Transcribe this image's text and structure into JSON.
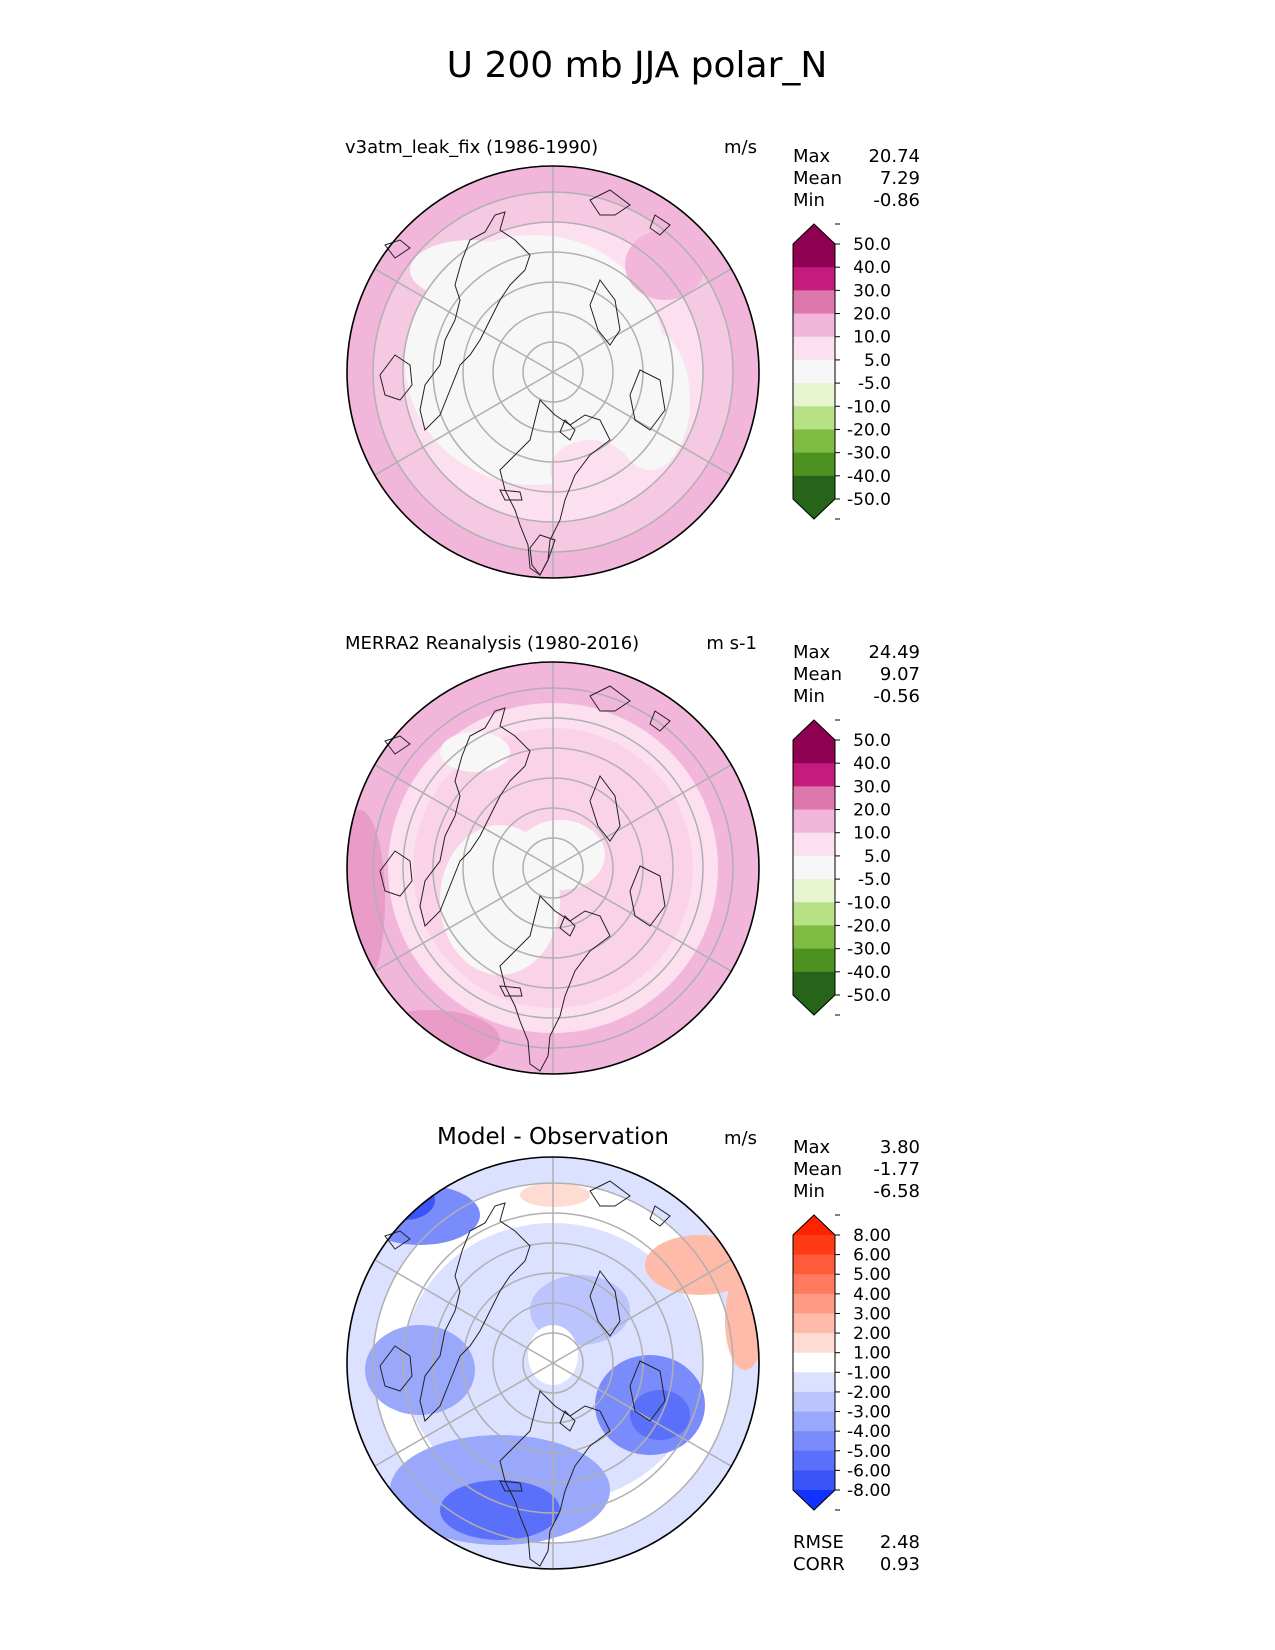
{
  "title": "U 200 mb JJA polar_N",
  "chart_data": [
    {
      "type": "heatmap",
      "projection": "north-polar-stereographic",
      "panel_title": "v3atm_leak_fix (1986-1990)",
      "units": "m/s",
      "stats": {
        "max_label": "Max",
        "max": "20.74",
        "mean_label": "Mean",
        "mean": "7.29",
        "min_label": "Min",
        "min": "-0.86"
      },
      "colorbar": {
        "levels": [
          "50.0",
          "40.0",
          "30.0",
          "20.0",
          "10.0",
          "5.0",
          "-5.0",
          "-10.0",
          "-20.0",
          "-30.0",
          "-40.0",
          "-50.0"
        ],
        "colors": [
          "#8e0152",
          "#c51b7d",
          "#de77ae",
          "#f1b6da",
          "#fde0ef",
          "#f7f7f7",
          "#e6f5d0",
          "#b8e186",
          "#7fbc41",
          "#4d9221",
          "#276419"
        ],
        "top_color": "#8e0152",
        "bottom_color": "#276419"
      },
      "field": {
        "mean_value": 7.29,
        "fill_rings": [
          {
            "lat_min": 40,
            "lat_max": 50,
            "value": 15
          },
          {
            "lat_min": 50,
            "lat_max": 60,
            "value": 12
          },
          {
            "lat_min": 60,
            "lat_max": 70,
            "value": 6
          },
          {
            "lat_min": 70,
            "lat_max": 90,
            "value": 2
          }
        ]
      }
    },
    {
      "type": "heatmap",
      "projection": "north-polar-stereographic",
      "panel_title": "MERRA2 Reanalysis (1980-2016)",
      "units": "m s-1",
      "stats": {
        "max_label": "Max",
        "max": "24.49",
        "mean_label": "Mean",
        "mean": "9.07",
        "min_label": "Min",
        "min": "-0.56"
      },
      "colorbar": {
        "levels": [
          "50.0",
          "40.0",
          "30.0",
          "20.0",
          "10.0",
          "5.0",
          "-5.0",
          "-10.0",
          "-20.0",
          "-30.0",
          "-40.0",
          "-50.0"
        ],
        "colors": [
          "#8e0152",
          "#c51b7d",
          "#de77ae",
          "#f1b6da",
          "#fde0ef",
          "#f7f7f7",
          "#e6f5d0",
          "#b8e186",
          "#7fbc41",
          "#4d9221",
          "#276419"
        ],
        "top_color": "#8e0152",
        "bottom_color": "#276419"
      },
      "field": {
        "mean_value": 9.07,
        "fill_rings": [
          {
            "lat_min": 40,
            "lat_max": 50,
            "value": 18
          },
          {
            "lat_min": 50,
            "lat_max": 65,
            "value": 12
          },
          {
            "lat_min": 65,
            "lat_max": 80,
            "value": 7
          },
          {
            "lat_min": 80,
            "lat_max": 90,
            "value": 2
          }
        ]
      }
    },
    {
      "type": "heatmap",
      "projection": "north-polar-stereographic",
      "panel_title": "Model - Observation",
      "units": "m/s",
      "stats": {
        "max_label": "Max",
        "max": "3.80",
        "mean_label": "Mean",
        "mean": "-1.77",
        "min_label": "Min",
        "min": "-6.58"
      },
      "extra_stats": {
        "rmse_label": "RMSE",
        "rmse": "2.48",
        "corr_label": "CORR",
        "corr": "0.93"
      },
      "colorbar": {
        "levels": [
          "8.00",
          "6.00",
          "5.00",
          "4.00",
          "3.00",
          "2.00",
          "1.00",
          "-1.00",
          "-2.00",
          "-3.00",
          "-4.00",
          "-5.00",
          "-6.00",
          "-8.00"
        ],
        "colors": [
          "#ff3a14",
          "#ff5a3a",
          "#ff7a5e",
          "#ff9b84",
          "#ffbba9",
          "#ffdcd2",
          "#ffffff",
          "#dbe1fe",
          "#bcc4fd",
          "#9aa8fc",
          "#7a8cfb",
          "#5a70fa",
          "#3a54f9"
        ],
        "top_color": "#ff2200",
        "bottom_color": "#1133ff"
      },
      "field": {
        "mean_value": -1.77,
        "fill_rings": [
          {
            "lat_min": 40,
            "lat_max": 55,
            "value": -1.5
          },
          {
            "lat_min": 55,
            "lat_max": 75,
            "value": -2.5
          },
          {
            "lat_min": 75,
            "lat_max": 90,
            "value": -0.5
          }
        ]
      }
    }
  ]
}
